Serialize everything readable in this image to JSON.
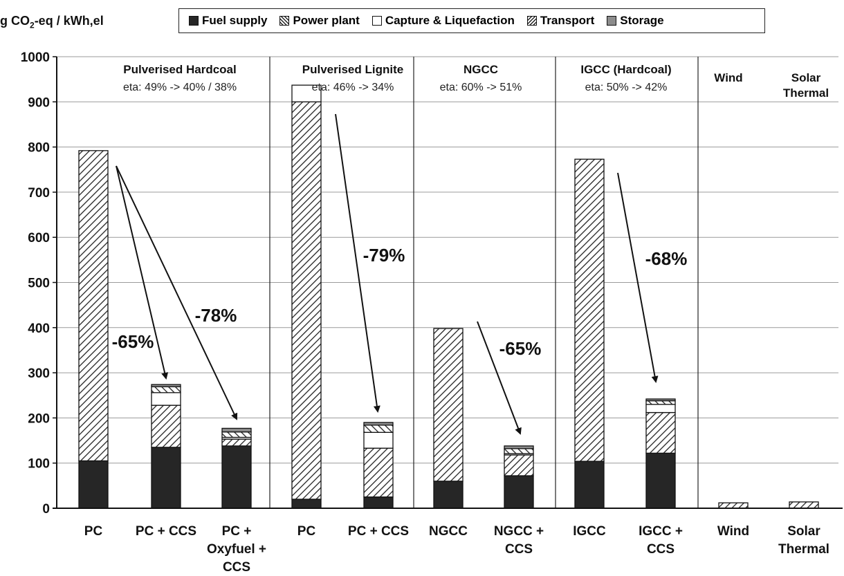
{
  "chart_data": {
    "type": "bar",
    "stacked": true,
    "ylabel": "g CO2-eq / kWh,el",
    "ylabel_parts": [
      "g CO",
      "2",
      "-eq / kWh,el"
    ],
    "ylim": [
      0,
      1000
    ],
    "yticks": [
      0,
      100,
      200,
      300,
      400,
      500,
      600,
      700,
      800,
      900,
      1000
    ],
    "grid": true,
    "legend_position": "top",
    "categories": [
      [
        "PC"
      ],
      [
        "PC + CCS"
      ],
      [
        "PC +",
        "Oxyfuel +",
        "CCS"
      ],
      [
        "PC"
      ],
      [
        "PC + CCS"
      ],
      [
        "NGCC"
      ],
      [
        "NGCC +",
        "CCS"
      ],
      [
        "IGCC"
      ],
      [
        "IGCC +",
        "CCS"
      ],
      [
        "Wind"
      ],
      [
        "Solar",
        "Thermal"
      ]
    ],
    "series": [
      {
        "name": "Fuel supply",
        "pattern": "solid-dark",
        "color": "#262626",
        "values": [
          105,
          135,
          138,
          20,
          25,
          60,
          72,
          104,
          122,
          0,
          0
        ]
      },
      {
        "name": "Power plant",
        "pattern": "diagonal-hatch",
        "color": "#ffffff",
        "values": [
          687,
          93,
          15,
          880,
          108,
          338,
          46,
          669,
          90,
          12,
          14
        ]
      },
      {
        "name": "Capture & Liquefaction",
        "pattern": "white",
        "color": "#ffffff",
        "values": [
          0,
          28,
          4,
          37,
          35,
          0,
          3,
          0,
          18,
          0,
          0
        ]
      },
      {
        "name": "Transport",
        "pattern": "cross-hatch",
        "color": "#ffffff",
        "values": [
          0,
          13,
          12,
          0,
          16,
          0,
          11,
          0,
          8,
          0,
          0
        ]
      },
      {
        "name": "Storage",
        "pattern": "gray",
        "color": "#8c8c8c",
        "values": [
          0,
          5,
          8,
          0,
          6,
          0,
          6,
          0,
          4,
          0,
          0
        ]
      }
    ],
    "groups": [
      {
        "title": "Pulverised Hardcoal",
        "subtitle": "eta: 49% -> 40% / 38%"
      },
      {
        "title": "Pulverised Lignite",
        "subtitle": "eta: 46% -> 34%"
      },
      {
        "title": "NGCC",
        "subtitle": "eta: 60% -> 51%"
      },
      {
        "title": "IGCC (Hardcoal)",
        "subtitle": "eta: 50% -> 42%"
      },
      {
        "title": "Wind",
        "subtitle": ""
      },
      {
        "title": "Solar\nThermal",
        "subtitle": ""
      }
    ],
    "annotations": [
      {
        "text": "-65%",
        "from_bar": 0,
        "to_bar": 1
      },
      {
        "text": "-78%",
        "from_bar": 0,
        "to_bar": 2
      },
      {
        "text": "-79%",
        "from_bar": 3,
        "to_bar": 4
      },
      {
        "text": "-65%",
        "from_bar": 5,
        "to_bar": 6
      },
      {
        "text": "-68%",
        "from_bar": 7,
        "to_bar": 8
      }
    ]
  }
}
